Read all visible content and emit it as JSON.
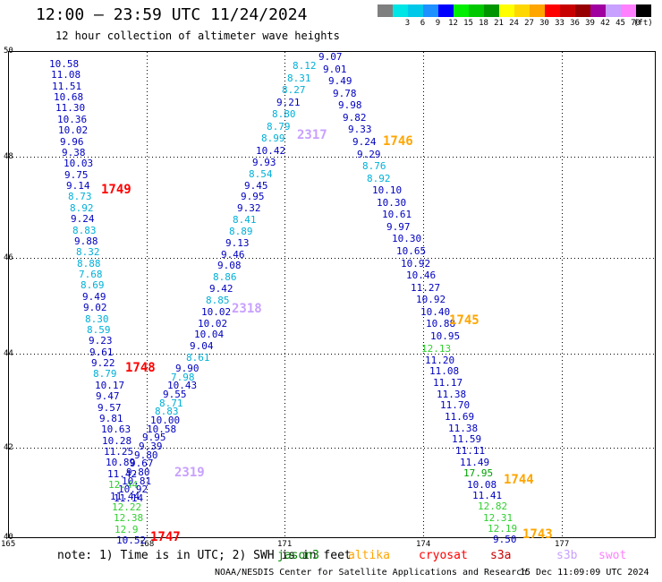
{
  "title": "12:00 — 23:59 UTC 11/24/2024",
  "subtitle": "12 hour collection of altimeter wave heights",
  "colorbar": {
    "unit": "(ft)",
    "bins": [
      {
        "label": "",
        "color": "#7f7f7f"
      },
      {
        "label": "3",
        "color": "#00e5e5"
      },
      {
        "label": "6",
        "color": "#00c8e8"
      },
      {
        "label": "9",
        "color": "#1e90ff"
      },
      {
        "label": "12",
        "color": "#0000ff"
      },
      {
        "label": "15",
        "color": "#00ee00"
      },
      {
        "label": "18",
        "color": "#00c800"
      },
      {
        "label": "21",
        "color": "#009600"
      },
      {
        "label": "24",
        "color": "#ffff00"
      },
      {
        "label": "27",
        "color": "#ffd700"
      },
      {
        "label": "30",
        "color": "#ffa500"
      },
      {
        "label": "33",
        "color": "#ff0000"
      },
      {
        "label": "36",
        "color": "#c80000"
      },
      {
        "label": "39",
        "color": "#960000"
      },
      {
        "label": "42",
        "color": "#a000a0"
      },
      {
        "label": "45",
        "color": "#c8a0ff"
      },
      {
        "label": "70",
        "color": "#ff80ff"
      },
      {
        "label": "",
        "color": "#000000"
      }
    ]
  },
  "map": {
    "lat_labels": [
      "50",
      "48",
      "46",
      "44",
      "42",
      "40"
    ],
    "lon_labels": [
      "165",
      "168",
      "171",
      "174",
      "177"
    ]
  },
  "tracks": [
    {
      "pass": "1749",
      "color": "#ff0000",
      "values": [
        "10.58",
        "11.08",
        "11.51",
        "10.68",
        "11.30",
        "10.36",
        "10.02",
        "9.96",
        "9.38",
        "10.03",
        "9.75",
        "9.14",
        "8.73",
        "8.92",
        "9.24",
        "8.83",
        "9.88",
        "8.32",
        "8.88",
        "7.68",
        "8.69",
        "9.49",
        "9.02",
        "8.30",
        "8.59",
        "9.23",
        "9.61",
        "9.22",
        "8.79",
        "10.17",
        "9.47",
        "9.57",
        "9.81",
        "10.63",
        "10.28",
        "11.25",
        "10.89",
        "11.42",
        "12.44",
        "11.44",
        "12.22",
        "12.38",
        "12.9",
        "10.52"
      ]
    },
    {
      "pass": "1748",
      "color": "#ff0000",
      "values": []
    },
    {
      "pass": "2319",
      "color": "#c8a0ff",
      "values": [
        "11.14",
        "10.92",
        "10.81",
        "9.80",
        "9.67",
        "9.80",
        "9.39",
        "9.95",
        "10.58",
        "10.00",
        "8.83",
        "8.71",
        "9.55",
        "10.43",
        "7.98",
        "9.90"
      ]
    },
    {
      "pass": "2318",
      "color": "#c8a0ff",
      "values": [
        "8.61",
        "9.04",
        "10.04",
        "10.02",
        "10.02",
        "8.85",
        "9.42",
        "8.86",
        "9.08",
        "9.46",
        "9.13",
        "8.89",
        "8.41",
        "9.32",
        "9.95",
        "9.45",
        "8.54",
        "9.93"
      ]
    },
    {
      "pass": "2317",
      "color": "#c8a0ff",
      "values": [
        "10.42",
        "8.99",
        "8.79",
        "8.80",
        "9.21",
        "8.27",
        "8.31",
        "8.12"
      ]
    },
    {
      "pass": "1746",
      "color": "#ffa500",
      "values": [
        "9.07",
        "9.01",
        "9.49",
        "9.78",
        "9.98",
        "9.82",
        "9.33",
        "9.24",
        "9.29",
        "8.76",
        "8.92",
        "10.10",
        "10.30",
        "10.61",
        "9.97",
        "10.30",
        "10.65",
        "10.92",
        "10.46",
        "11.27",
        "10.92",
        "10.40",
        "10.88",
        "10.95"
      ]
    },
    {
      "pass": "1745",
      "color": "#ffa500",
      "values": [
        "12.13",
        "11.20",
        "11.08",
        "11.17",
        "11.38",
        "11.70",
        "11.69",
        "11.38",
        "11.59",
        "11.11",
        "11.49",
        "17.95",
        "10.08"
      ]
    },
    {
      "pass": "1744",
      "color": "#ffa500",
      "values": [
        "11.41",
        "12.82",
        "12.31",
        "12.19",
        "9.50"
      ]
    },
    {
      "pass": "1743",
      "color": "#ffa500",
      "values": []
    },
    {
      "pass": "1747",
      "color": "#ff0000",
      "values": []
    }
  ],
  "note": "note: 1) Time is in UTC; 2) SWH is in feet",
  "satellites": [
    {
      "name": "jason3",
      "color": "#008000"
    },
    {
      "name": "altika",
      "color": "#ffa500"
    },
    {
      "name": "cryosat",
      "color": "#ff0000"
    },
    {
      "name": "s3a",
      "color": "#c80000"
    },
    {
      "name": "s3b",
      "color": "#c8a0ff"
    },
    {
      "name": "swot",
      "color": "#ff80ff"
    }
  ],
  "footer": {
    "credit": "NOAA/NESDIS Center for Satellite Applications and Research",
    "timestamp": "15 Dec 11:09:09 UTC 2024"
  }
}
